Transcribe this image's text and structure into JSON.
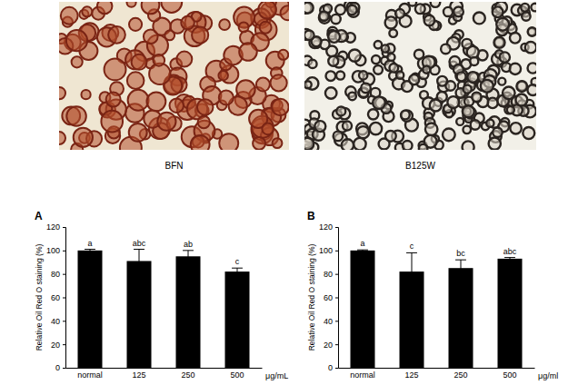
{
  "images": [
    {
      "caption": "BFN"
    },
    {
      "caption": "B125W"
    }
  ],
  "chart_data": [
    {
      "type": "bar",
      "panel": "A",
      "y_label": "Relative Oil Red O staining (%)",
      "x_label": "μg/mL",
      "categories": [
        "normal",
        "125",
        "250",
        "500"
      ],
      "values": [
        100,
        91,
        95,
        82
      ],
      "errors": [
        1,
        10,
        5,
        3
      ],
      "annotations": [
        "a",
        "abc",
        "ab",
        "c"
      ],
      "color": "#000000",
      "ylim": [
        0,
        120
      ],
      "yticks": [
        0,
        20,
        40,
        60,
        80,
        100,
        120
      ]
    },
    {
      "type": "bar",
      "panel": "B",
      "y_label": "Relative Oil Red O staining (%)",
      "x_label": "μg/ml",
      "categories": [
        "normal",
        "125",
        "250",
        "500"
      ],
      "values": [
        100,
        82,
        85,
        93
      ],
      "errors": [
        0.5,
        16,
        7,
        1
      ],
      "annotations": [
        "a",
        "c",
        "bc",
        "abc"
      ],
      "color": "#000000",
      "ylim": [
        0,
        120
      ],
      "yticks": [
        0,
        20,
        40,
        60,
        80,
        100,
        120
      ]
    }
  ]
}
